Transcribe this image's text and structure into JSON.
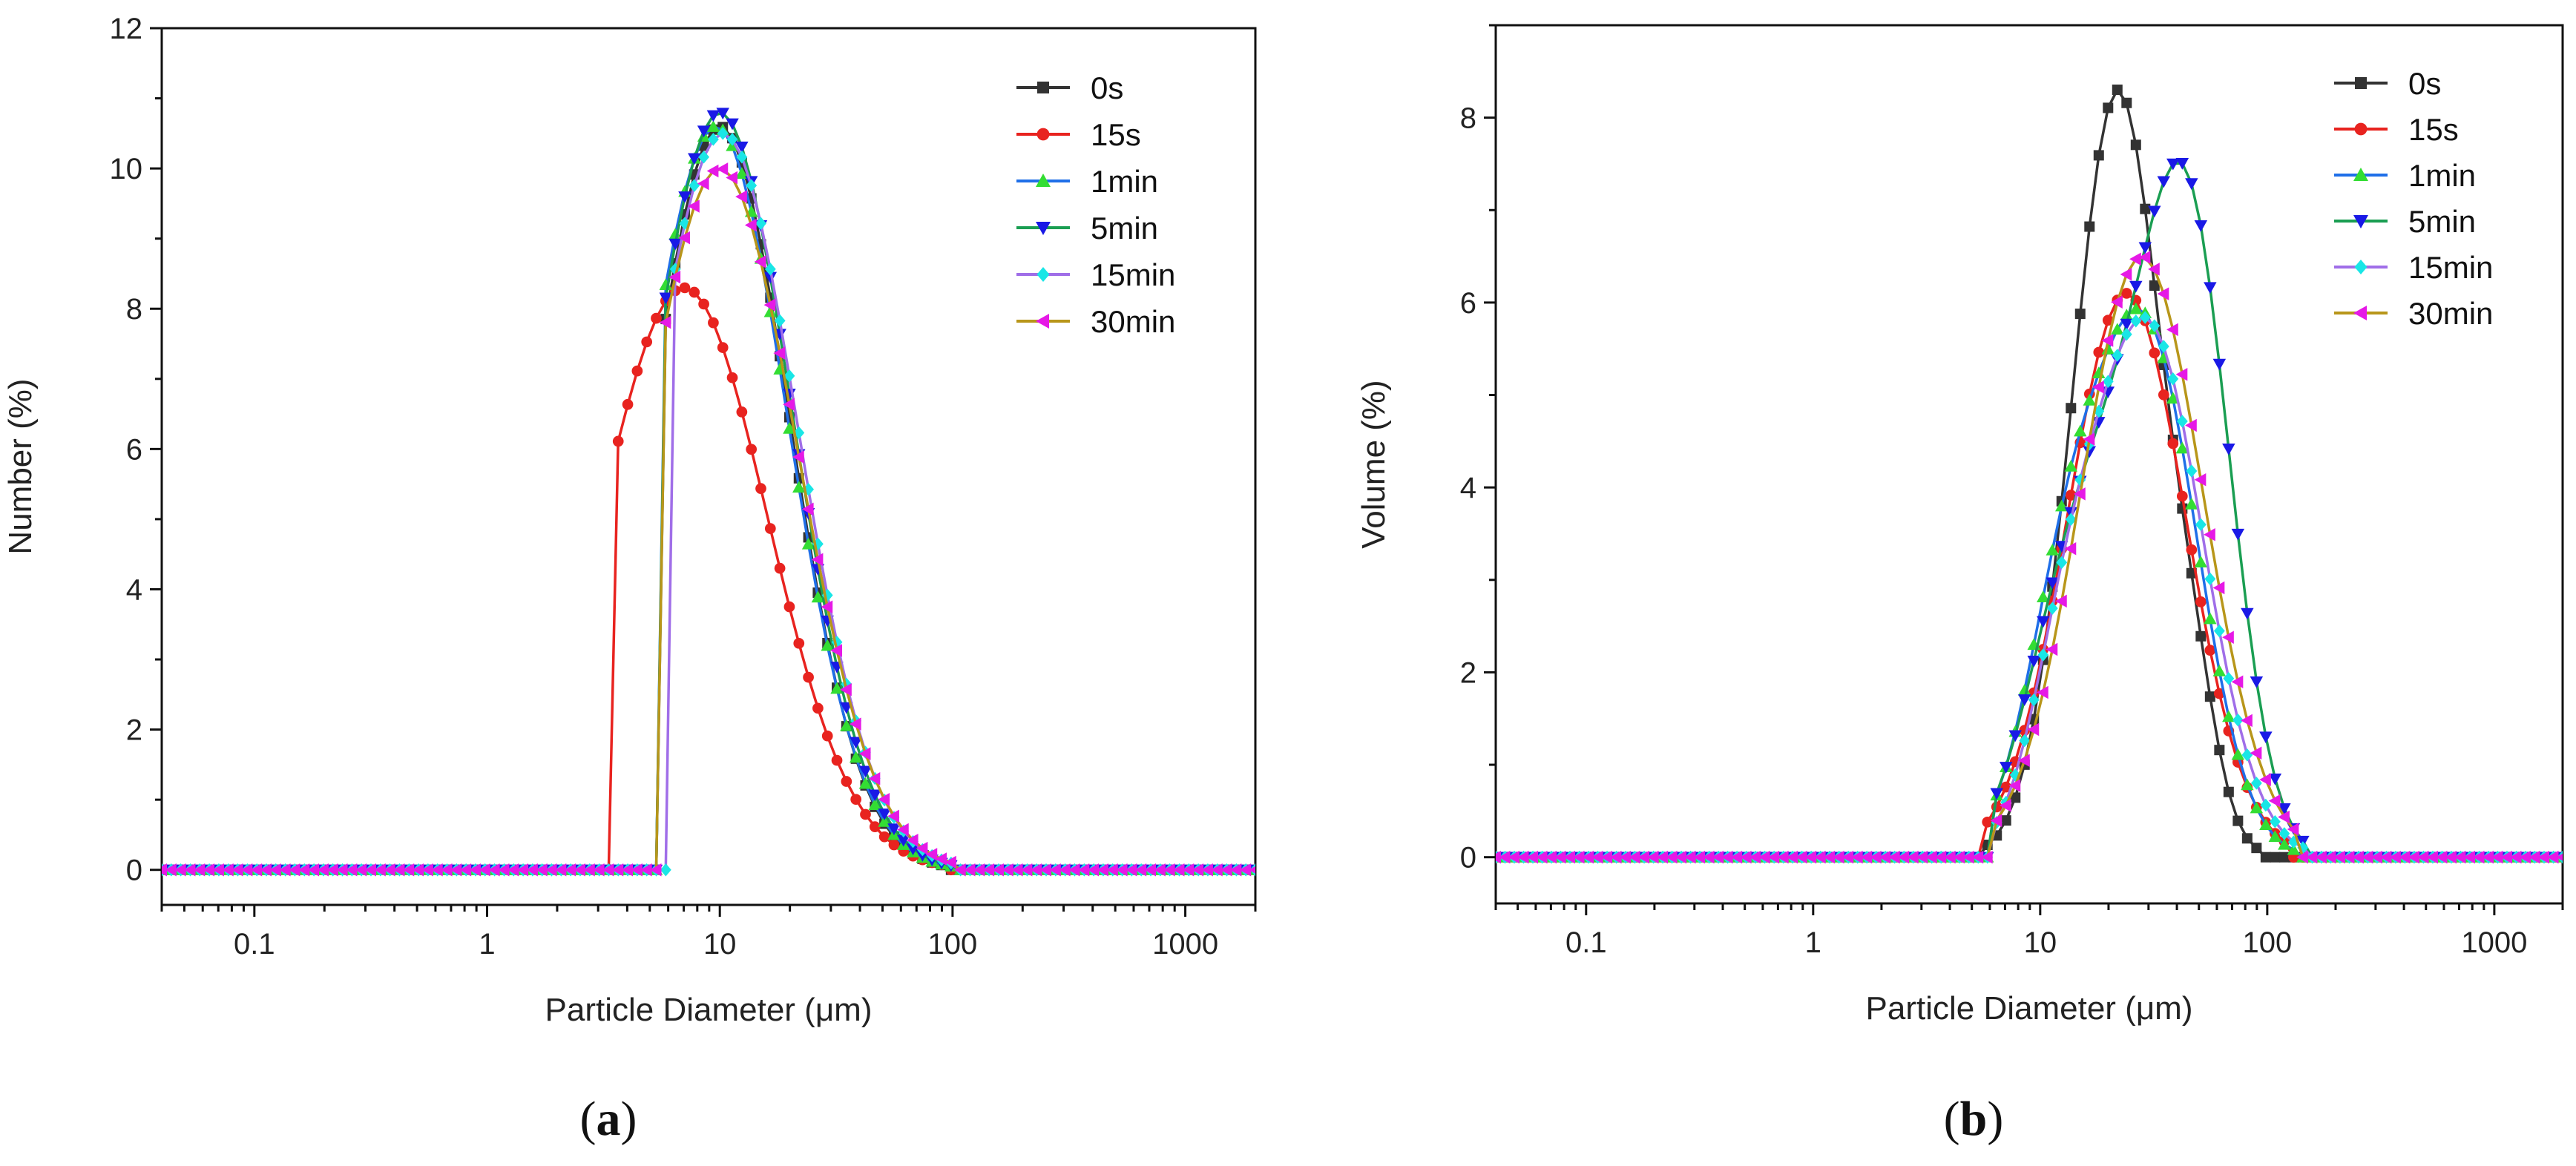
{
  "figure": {
    "panels": [
      {
        "label_open": "(",
        "label_letter": "a",
        "label_close": ")"
      },
      {
        "label_open": "(",
        "label_letter": "b",
        "label_close": ")"
      }
    ]
  },
  "series_styles": [
    {
      "name": "0s",
      "color": "#333333",
      "marker": "square"
    },
    {
      "name": "15s",
      "color": "#e8231f",
      "marker": "circle"
    },
    {
      "name": "1min",
      "color": "#1f6fe8",
      "marker": "triangle-up",
      "marker_color": "#33dd33"
    },
    {
      "name": "5min",
      "color": "#1a9e52",
      "marker": "triangle-down",
      "marker_color": "#1919e6"
    },
    {
      "name": "15min",
      "color": "#a06ee8",
      "marker": "diamond",
      "marker_color": "#19e6e6"
    },
    {
      "name": "30min",
      "color": "#b8961a",
      "marker": "triangle-left",
      "marker_color": "#e619e6"
    }
  ],
  "chart_data": [
    {
      "type": "line",
      "title": "",
      "xlabel": "Particle Diameter (μm)",
      "ylabel": "Number (%)",
      "xscale": "log",
      "xlim": [
        0.04,
        2000
      ],
      "ylim": [
        -0.5,
        12
      ],
      "x_ticks": [
        0.1,
        1,
        10,
        100,
        1000
      ],
      "x_tick_labels": [
        "0.1",
        "1",
        "10",
        "100",
        "1000"
      ],
      "y_ticks": [
        0,
        2,
        4,
        6,
        8,
        10,
        12
      ],
      "y_tick_labels": [
        "0",
        "2",
        "4",
        "6",
        "8",
        "10",
        "12"
      ],
      "legend_position": "top-right",
      "series": [
        {
          "name": "0s",
          "peak_x": 10.0,
          "peak_y": 10.6,
          "sigma": 0.3,
          "cutoff": 5.8,
          "cutoff_end": 80
        },
        {
          "name": "15s",
          "peak_x": 7.0,
          "peak_y": 8.3,
          "sigma": 0.36,
          "cutoff": 3.5,
          "cutoff_end": 80
        },
        {
          "name": "1min",
          "peak_x": 9.6,
          "peak_y": 10.6,
          "sigma": 0.31,
          "cutoff": 5.8,
          "cutoff_end": 85
        },
        {
          "name": "5min",
          "peak_x": 10.0,
          "peak_y": 10.8,
          "sigma": 0.31,
          "cutoff": 5.8,
          "cutoff_end": 85
        },
        {
          "name": "15min",
          "peak_x": 10.3,
          "peak_y": 10.5,
          "sigma": 0.32,
          "cutoff": 6.0,
          "cutoff_end": 90
        },
        {
          "name": "30min",
          "peak_x": 10.0,
          "peak_y": 10.0,
          "sigma": 0.33,
          "cutoff": 5.8,
          "cutoff_end": 90
        }
      ]
    },
    {
      "type": "line",
      "title": "",
      "xlabel": "Particle Diameter (μm)",
      "ylabel": "Volume (%)",
      "xscale": "log",
      "xlim": [
        0.04,
        2000
      ],
      "ylim": [
        -0.5,
        9
      ],
      "x_ticks": [
        0.1,
        1,
        10,
        100,
        1000
      ],
      "x_tick_labels": [
        "0.1",
        "1",
        "10",
        "100",
        "1000"
      ],
      "y_ticks": [
        0,
        2,
        4,
        6,
        8
      ],
      "y_tick_labels": [
        "0",
        "2",
        "4",
        "6",
        "8"
      ],
      "legend_position": "top-right",
      "series": [
        {
          "name": "0s",
          "components": [
            [
              22,
              8.3,
              0.2
            ],
            [
              48,
              0.85,
              0.1
            ]
          ],
          "cutoff": 5.5,
          "cutoff_end": 90
        },
        {
          "name": "15s",
          "components": [
            [
              24,
              6.1,
              0.26
            ]
          ],
          "cutoff": 5.5,
          "cutoff_end": 130
        },
        {
          "name": "1min",
          "components": [
            [
              30,
              5.5,
              0.22
            ],
            [
              13,
              2.6,
              0.18
            ]
          ],
          "cutoff": 6.0,
          "cutoff_end": 140
        },
        {
          "name": "5min",
          "components": [
            [
              48,
              5.4,
              0.18
            ],
            [
              25,
              4.0,
              0.22
            ],
            [
              12,
              1.8,
              0.18
            ]
          ],
          "cutoff": 6.0,
          "cutoff_end": 145
        },
        {
          "name": "15min",
          "components": [
            [
              30,
              5.7,
              0.24
            ],
            [
              13,
              1.6,
              0.16
            ]
          ],
          "cutoff": 6.0,
          "cutoff_end": 145
        },
        {
          "name": "30min",
          "components": [
            [
              28,
              6.5,
              0.27
            ]
          ],
          "cutoff": 6.0,
          "cutoff_end": 135
        }
      ]
    }
  ]
}
